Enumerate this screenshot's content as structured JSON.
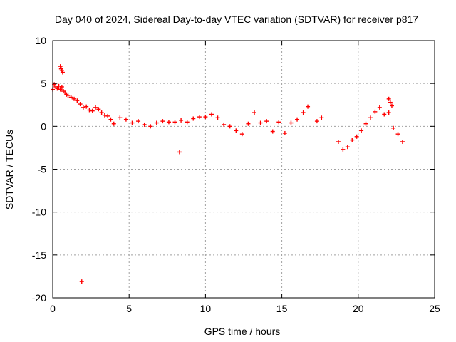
{
  "chart_data": {
    "type": "scatter",
    "title": "Day 040 of 2024, Sidereal Day-to-day VTEC variation (SDTVAR) for receiver p817",
    "xlabel": "GPS time / hours",
    "ylabel": "SDTVAR / TECUs",
    "xlim": [
      0,
      25
    ],
    "ylim": [
      -20,
      10
    ],
    "xticks": [
      0,
      5,
      10,
      15,
      20,
      25
    ],
    "yticks": [
      -20,
      -15,
      -10,
      -5,
      0,
      5,
      10
    ],
    "grid": true,
    "marker": "+",
    "color": "#ff0000",
    "series": [
      {
        "name": "SDTVAR",
        "x": [
          0.0,
          0.1,
          0.2,
          0.3,
          0.4,
          0.5,
          0.6,
          0.7,
          0.8,
          0.9,
          1.0,
          1.2,
          1.4,
          1.6,
          1.8,
          2.0,
          2.2,
          2.4,
          2.6,
          2.8,
          3.0,
          3.2,
          3.4,
          3.6,
          3.8,
          4.0,
          4.4,
          4.8,
          5.2,
          5.6,
          6.0,
          6.4,
          6.8,
          7.2,
          7.6,
          8.0,
          8.4,
          8.8,
          9.2,
          9.6,
          10.0,
          10.4,
          10.8,
          11.2,
          11.6,
          12.0,
          12.4,
          12.8,
          13.2,
          13.6,
          14.0,
          14.4,
          14.8,
          15.2,
          15.6,
          16.0,
          16.4,
          16.7,
          17.3,
          17.6,
          18.7,
          19.0,
          19.3,
          19.6,
          19.9,
          20.2,
          20.5,
          20.8,
          21.1,
          21.4,
          21.7,
          22.0,
          22.3,
          22.6,
          22.9,
          0.5,
          0.55,
          0.6,
          0.65,
          8.3,
          1.9,
          22.0,
          22.1,
          22.2
        ],
        "y": [
          4.3,
          4.9,
          4.6,
          4.4,
          4.7,
          4.3,
          4.6,
          4.1,
          3.9,
          3.7,
          3.6,
          3.4,
          3.2,
          3.0,
          2.6,
          2.2,
          2.3,
          1.9,
          1.8,
          2.2,
          2.0,
          1.6,
          1.3,
          1.2,
          0.8,
          0.3,
          1.0,
          0.8,
          0.4,
          0.6,
          0.2,
          0.0,
          0.4,
          0.6,
          0.5,
          0.5,
          0.7,
          0.5,
          0.9,
          1.1,
          1.1,
          1.4,
          1.0,
          0.2,
          0.0,
          -0.5,
          -0.9,
          0.3,
          1.6,
          0.4,
          0.6,
          -0.6,
          0.5,
          -0.8,
          0.4,
          0.8,
          1.6,
          2.3,
          0.6,
          1.0,
          -1.8,
          -2.7,
          -2.4,
          -1.6,
          -1.2,
          -0.5,
          0.3,
          1.0,
          1.7,
          2.2,
          1.4,
          1.6,
          -0.2,
          -0.9,
          -1.8,
          7.0,
          6.7,
          6.5,
          6.3,
          -3.0,
          -18.1,
          3.2,
          2.8,
          2.4
        ]
      }
    ]
  }
}
